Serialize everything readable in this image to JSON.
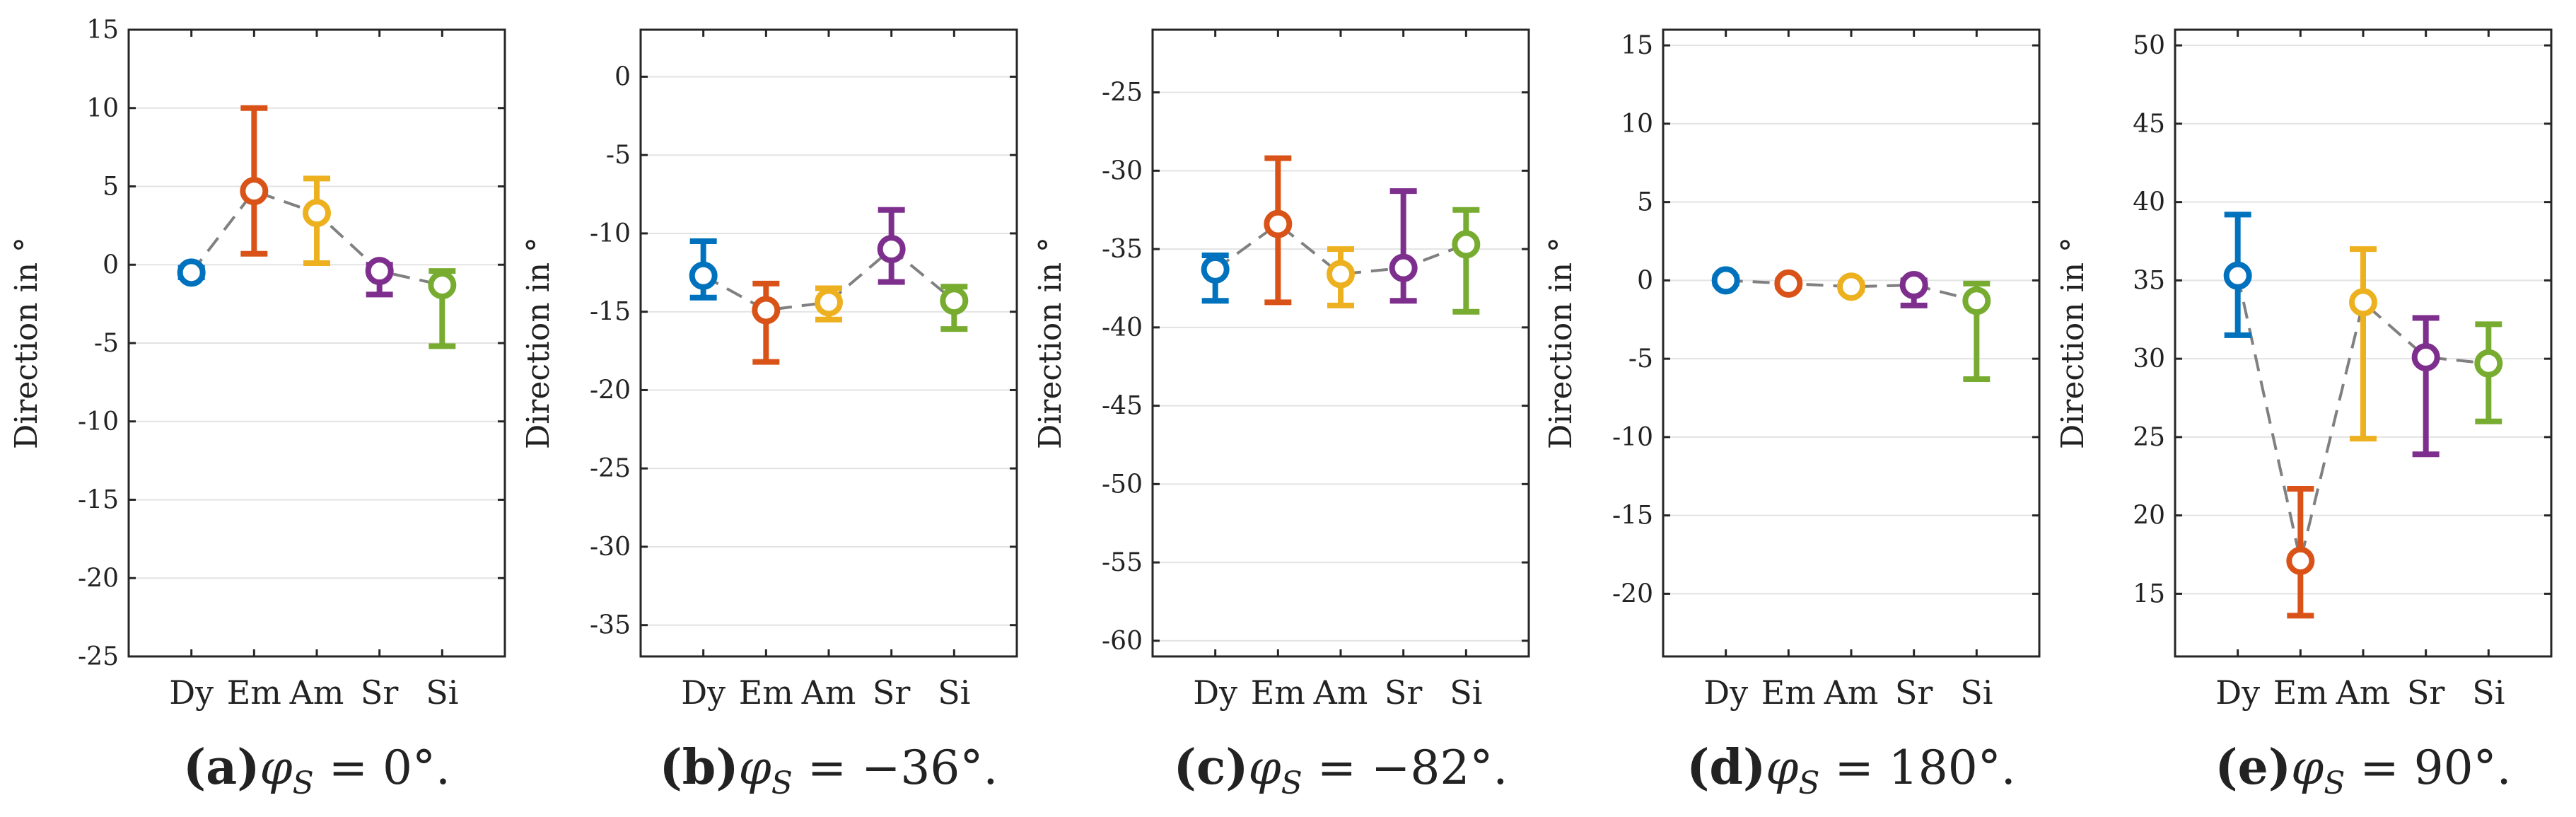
{
  "chart_data": [
    {
      "type": "scatter",
      "subplot_letter": "(a)",
      "caption_var": "φ",
      "caption_sub": "S",
      "caption_rest": " = 0°.",
      "ylabel": "Direction in °",
      "ylim": [
        -25,
        15
      ],
      "yticks": [
        15,
        10,
        5,
        0,
        -5,
        -10,
        -15,
        -20,
        -25
      ],
      "categories": [
        "Dy",
        "Em",
        "Am",
        "Sr",
        "Si"
      ],
      "values": [
        -0.5,
        4.7,
        3.3,
        -0.4,
        -1.3
      ],
      "err_low": [
        -0.8,
        0.7,
        0.1,
        -1.9,
        -5.2
      ],
      "err_high": [
        -0.2,
        10.0,
        5.5,
        0.0,
        -0.4
      ],
      "colors": [
        "#0072BD",
        "#D95319",
        "#EDB120",
        "#7E2F8E",
        "#77AC30"
      ],
      "grid": true
    },
    {
      "type": "scatter",
      "subplot_letter": "(b)",
      "caption_var": "φ",
      "caption_sub": "S",
      "caption_rest": " = −36°.",
      "ylabel": "Direction in °",
      "ylim": [
        -37,
        3
      ],
      "yticks": [
        0,
        -5,
        -10,
        -15,
        -20,
        -25,
        -30,
        -35
      ],
      "categories": [
        "Dy",
        "Em",
        "Am",
        "Sr",
        "Si"
      ],
      "values": [
        -12.7,
        -14.9,
        -14.4,
        -11.0,
        -14.3
      ],
      "err_low": [
        -14.1,
        -18.2,
        -15.5,
        -13.1,
        -16.1
      ],
      "err_high": [
        -10.5,
        -13.2,
        -13.5,
        -8.5,
        -13.4
      ],
      "colors": [
        "#0072BD",
        "#D95319",
        "#EDB120",
        "#7E2F8E",
        "#77AC30"
      ],
      "grid": true
    },
    {
      "type": "scatter",
      "subplot_letter": "(c)",
      "caption_var": "φ",
      "caption_sub": "S",
      "caption_rest": " = −82°.",
      "ylabel": "Direction in °",
      "ylim": [
        -61,
        -21
      ],
      "yticks": [
        -25,
        -30,
        -35,
        -40,
        -45,
        -50,
        -55,
        -60
      ],
      "categories": [
        "Dy",
        "Em",
        "Am",
        "Sr",
        "Si"
      ],
      "values": [
        -36.3,
        -33.4,
        -36.6,
        -36.2,
        -34.7
      ],
      "err_low": [
        -38.3,
        -38.4,
        -38.6,
        -38.3,
        -39.0
      ],
      "err_high": [
        -35.4,
        -29.2,
        -35.0,
        -31.3,
        -32.5
      ],
      "colors": [
        "#0072BD",
        "#D95319",
        "#EDB120",
        "#7E2F8E",
        "#77AC30"
      ],
      "grid": true
    },
    {
      "type": "scatter",
      "subplot_letter": "(d)",
      "caption_var": "φ",
      "caption_sub": "S",
      "caption_rest": " = 180°.",
      "ylabel": "Direction in °",
      "ylim": [
        -24,
        16
      ],
      "yticks": [
        15,
        10,
        5,
        0,
        -5,
        -10,
        -15,
        -20
      ],
      "categories": [
        "Dy",
        "Em",
        "Am",
        "Sr",
        "Si"
      ],
      "values": [
        0.0,
        -0.2,
        -0.4,
        -0.3,
        -1.3
      ],
      "err_low": [
        -0.2,
        -0.4,
        -0.6,
        -1.6,
        -6.3
      ],
      "err_high": [
        0.2,
        0.0,
        -0.2,
        0.0,
        -0.2
      ],
      "colors": [
        "#0072BD",
        "#D95319",
        "#EDB120",
        "#7E2F8E",
        "#77AC30"
      ],
      "grid": true
    },
    {
      "type": "scatter",
      "subplot_letter": "(e)",
      "caption_var": "φ",
      "caption_sub": "S",
      "caption_rest": " = 90°.",
      "ylabel": "Direction in °",
      "ylim": [
        11,
        51
      ],
      "yticks": [
        50,
        45,
        40,
        35,
        30,
        25,
        20,
        15
      ],
      "categories": [
        "Dy",
        "Em",
        "Am",
        "Sr",
        "Si"
      ],
      "values": [
        35.3,
        17.1,
        33.6,
        30.1,
        29.7
      ],
      "err_low": [
        31.5,
        13.6,
        24.9,
        23.9,
        26.0
      ],
      "err_high": [
        39.2,
        21.7,
        37.0,
        32.6,
        32.2
      ],
      "colors": [
        "#0072BD",
        "#D95319",
        "#EDB120",
        "#7E2F8E",
        "#77AC30"
      ],
      "grid": true
    }
  ]
}
